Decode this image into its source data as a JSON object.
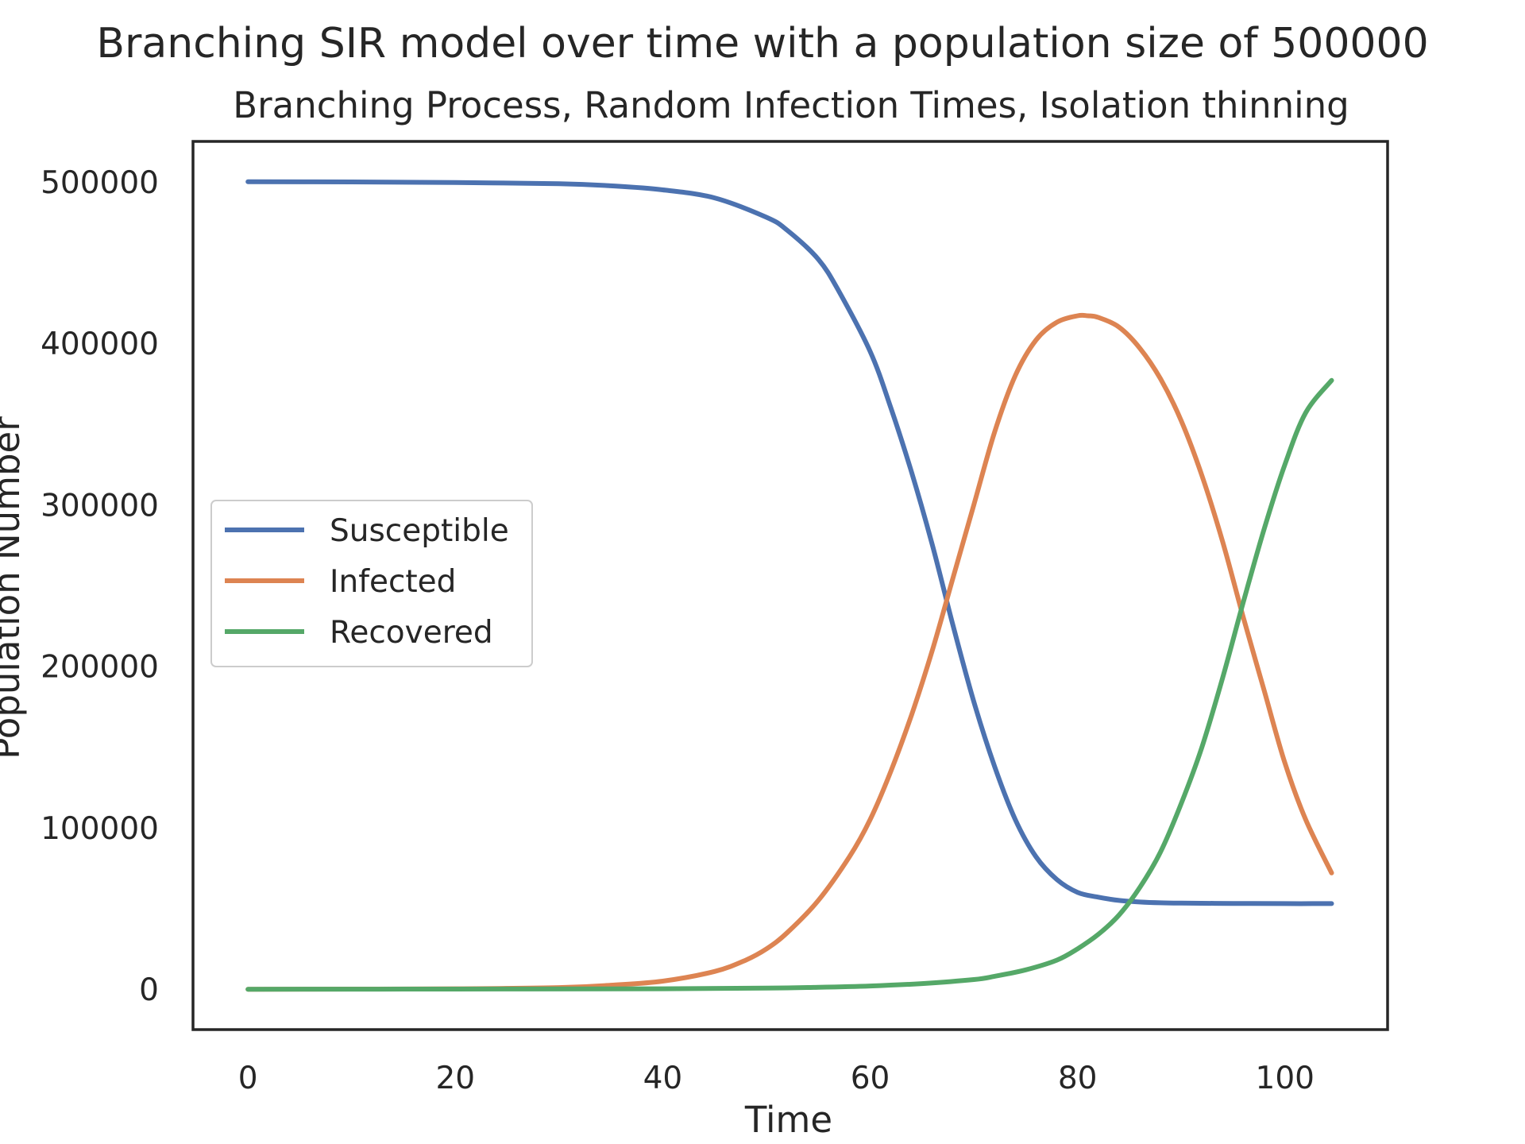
{
  "chart_data": {
    "type": "line",
    "title": "Branching SIR model over time with a population size of 500000",
    "subtitle": "Branching Process, Random Infection Times, Isolation thinning",
    "xlabel": "Time",
    "ylabel": "Population Number",
    "xlim": [
      -5.3,
      109.9
    ],
    "ylim": [
      -25000,
      525000
    ],
    "xticks": [
      0,
      20,
      40,
      60,
      80,
      100
    ],
    "yticks": [
      0,
      100000,
      200000,
      300000,
      400000,
      500000
    ],
    "grid": false,
    "legend_position": "center-left",
    "series": [
      {
        "name": "Susceptible",
        "color": "#4c72b0",
        "x": [
          0,
          10,
          20,
          30,
          35,
          40,
          45,
          50,
          52,
          55,
          57,
          60,
          62,
          64,
          66,
          68,
          70,
          72,
          74,
          76,
          78,
          80,
          82,
          84,
          86,
          88,
          90,
          95,
          100,
          104.5
        ],
        "y": [
          500000,
          499900,
          499500,
          498800,
          497500,
          495000,
          490000,
          478000,
          470000,
          452000,
          432000,
          395000,
          360000,
          320000,
          275000,
          225000,
          178000,
          138000,
          105000,
          82000,
          68000,
          60000,
          57000,
          55000,
          54000,
          53500,
          53300,
          53100,
          53000,
          53000
        ]
      },
      {
        "name": "Infected",
        "color": "#dd8452",
        "x": [
          0,
          10,
          20,
          30,
          35,
          40,
          45,
          48,
          50,
          52,
          55,
          58,
          60,
          62,
          64,
          66,
          68,
          70,
          72,
          74,
          76,
          78,
          80,
          81,
          82,
          84,
          86,
          88,
          90,
          92,
          94,
          96,
          98,
          100,
          102,
          104.5
        ],
        "y": [
          0,
          100,
          300,
          1000,
          2500,
          5000,
          11000,
          18000,
          25000,
          35000,
          55000,
          82000,
          105000,
          135000,
          170000,
          210000,
          255000,
          300000,
          345000,
          380000,
          402000,
          413000,
          417000,
          417000,
          416000,
          410000,
          397000,
          378000,
          352000,
          318000,
          277000,
          230000,
          185000,
          140000,
          105000,
          72000
        ]
      },
      {
        "name": "Recovered",
        "color": "#55a868",
        "x": [
          0,
          20,
          40,
          50,
          55,
          60,
          65,
          70,
          72,
          75,
          78,
          80,
          82,
          84,
          86,
          88,
          90,
          92,
          94,
          96,
          98,
          100,
          102,
          104.5
        ],
        "y": [
          0,
          100,
          300,
          700,
          1200,
          2000,
          3500,
          6000,
          8000,
          12000,
          18000,
          25000,
          34000,
          46000,
          63000,
          85000,
          115000,
          150000,
          193000,
          240000,
          285000,
          325000,
          357000,
          377000
        ]
      }
    ]
  }
}
